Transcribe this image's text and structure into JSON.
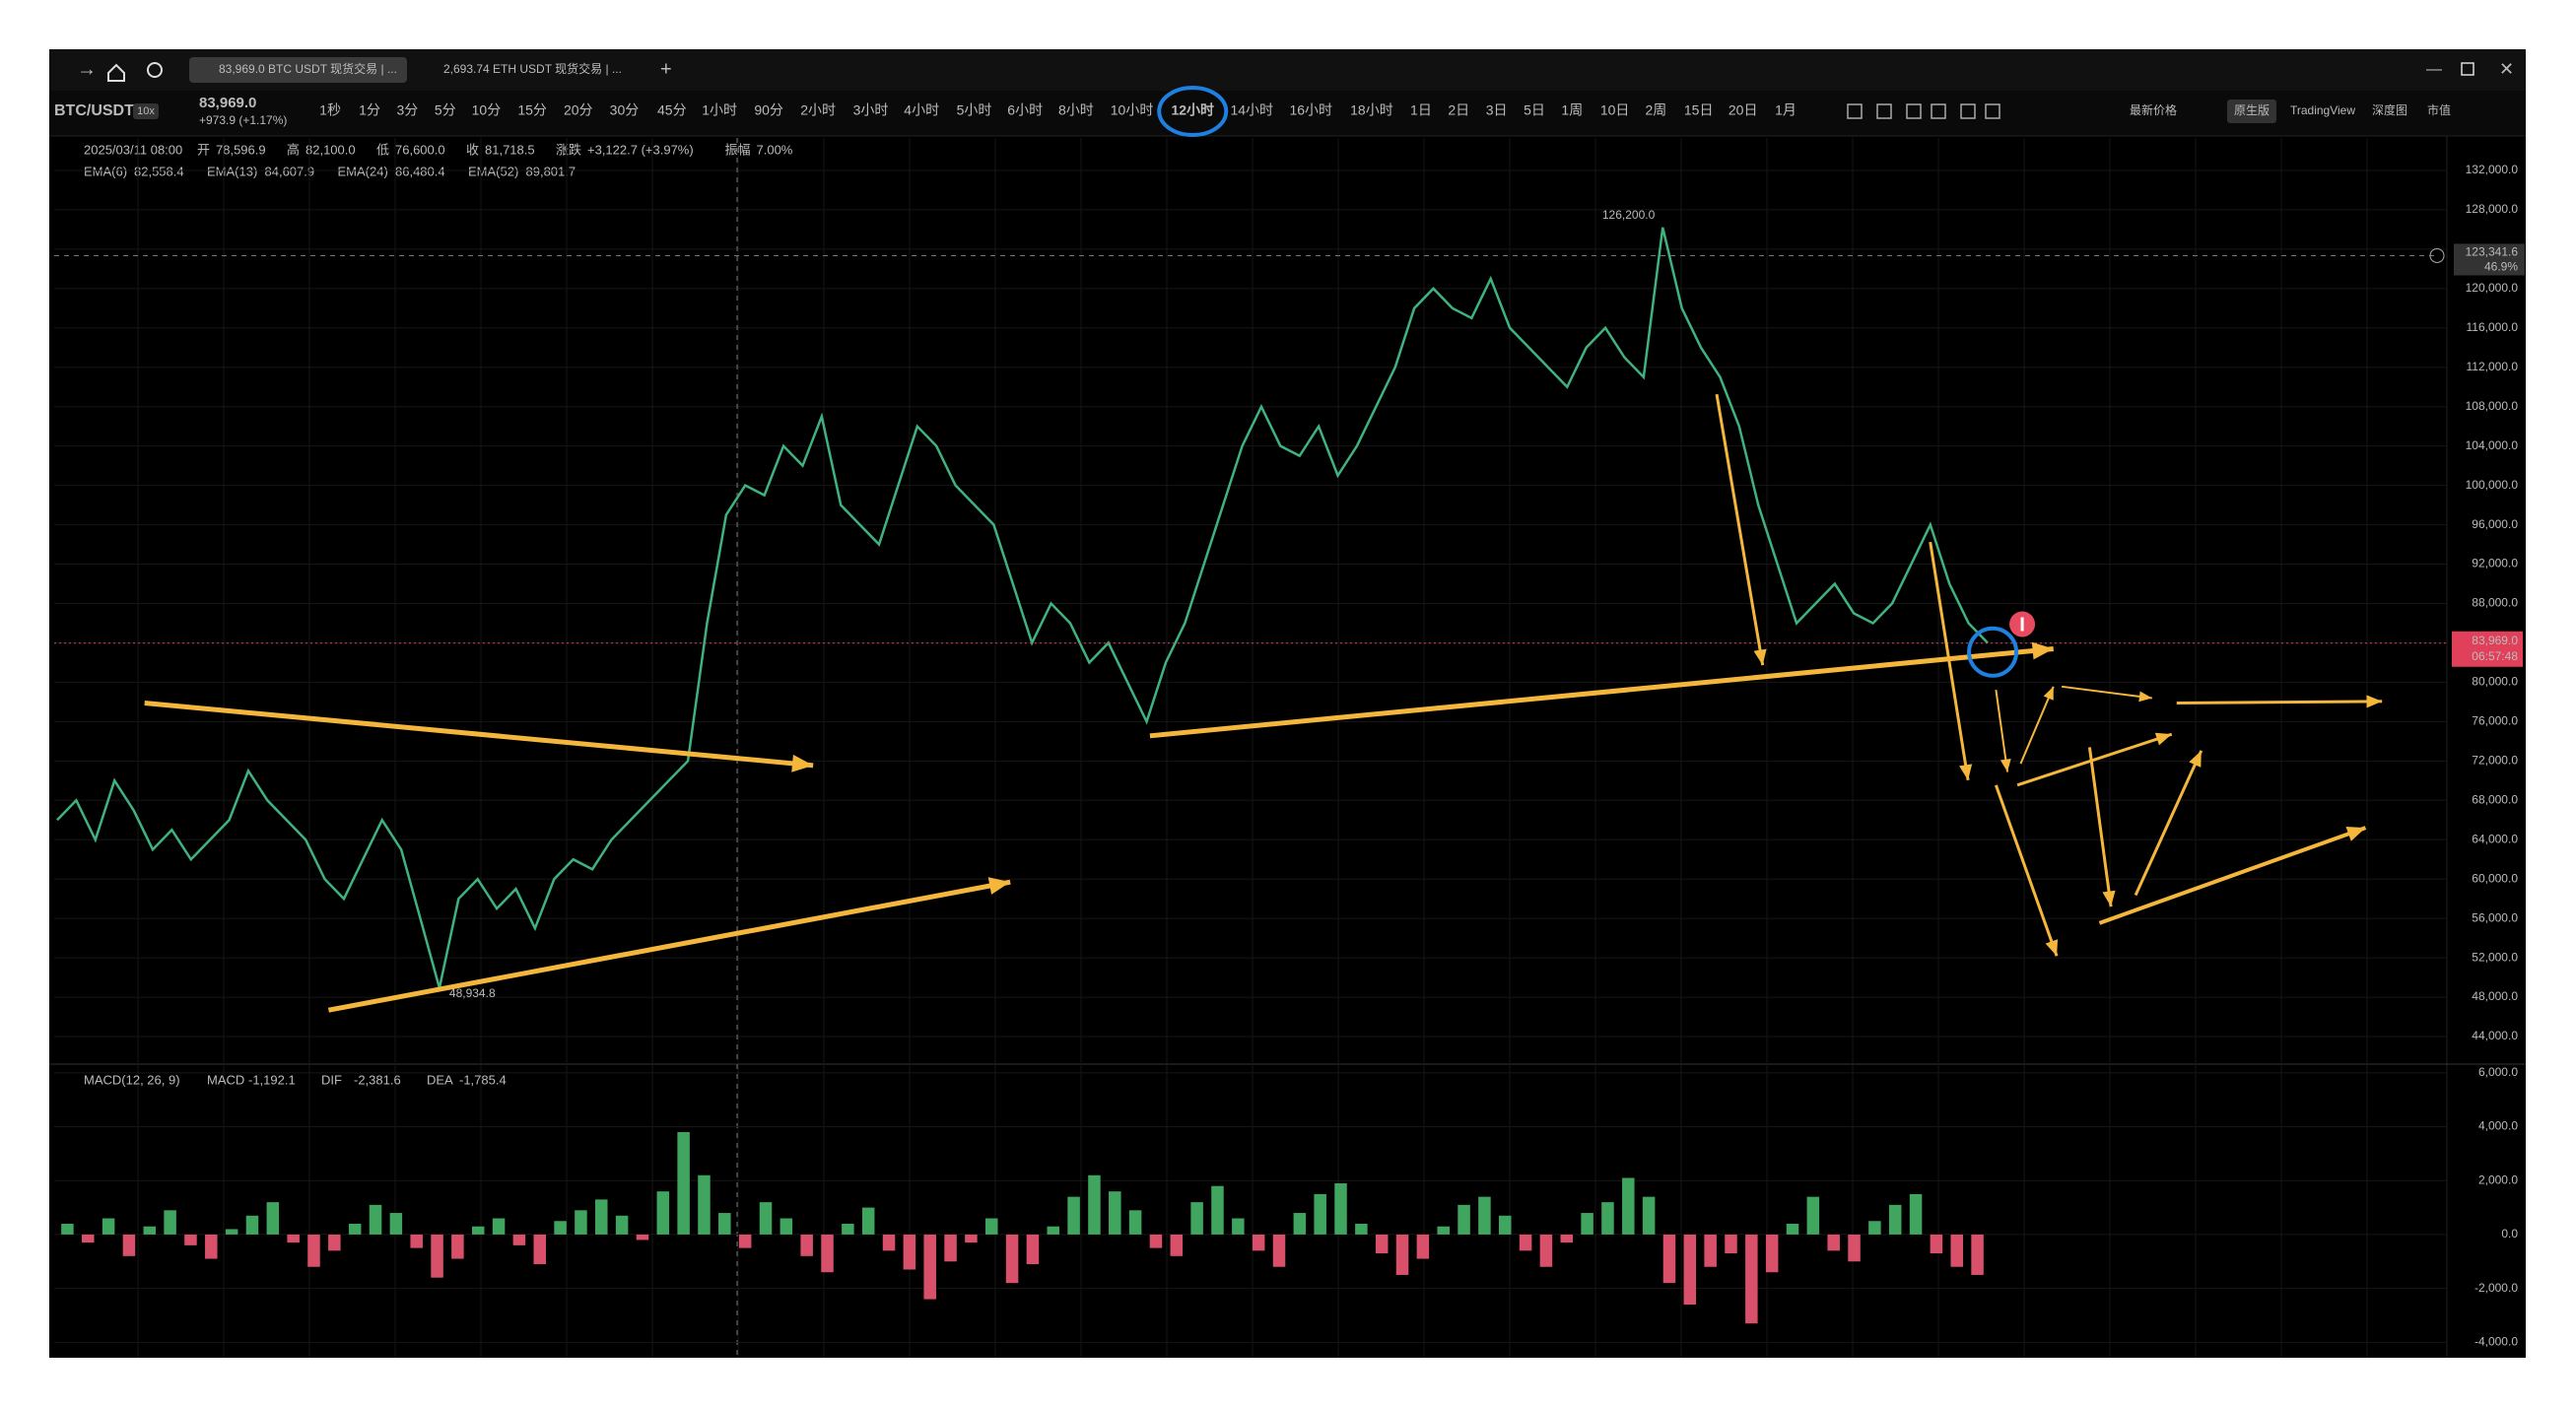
{
  "window": {
    "tabs": [
      "83,969.0 BTC USDT 现货交易 | ...",
      "2,693.74 ETH USDT 现货交易 | ..."
    ]
  },
  "toolbar": {
    "symbol": "BTC/USDT",
    "leverage": "10x",
    "price": "83,969.0",
    "change": "+973.9 (+1.17%)",
    "intervals": [
      "1秒",
      "1分",
      "3分",
      "5分",
      "10分",
      "15分",
      "20分",
      "30分",
      "45分",
      "1小时",
      "90分",
      "2小时",
      "3小时",
      "4小时",
      "5小时",
      "6小时",
      "8小时",
      "10小时",
      "12小时",
      "14小时",
      "16小时",
      "18小时",
      "1日",
      "2日",
      "3日",
      "5日",
      "1周",
      "10日",
      "2周",
      "15日",
      "20日",
      "1月"
    ],
    "selected_interval": 18,
    "view_options": [
      "最新价格",
      "原生版",
      "TradingView",
      "深度图",
      "市值"
    ]
  },
  "legend": {
    "date": "2025/03/11 08:00",
    "items": [
      {
        "label": "开",
        "value": "78,596.9"
      },
      {
        "label": "高",
        "value": "82,100.0"
      },
      {
        "label": "低",
        "value": "76,600.0"
      },
      {
        "label": "收",
        "value": "81,718.5"
      },
      {
        "label": "涨跌",
        "value": "+3,122.7 (+3.97%)"
      },
      {
        "label": "振幅",
        "value": "7.00%"
      }
    ],
    "ema": [
      {
        "name": "EMA(6)",
        "value": "82,558.4",
        "color": "#e8a23a"
      },
      {
        "name": "EMA(13)",
        "value": "84,607.9",
        "color": "#d9557a"
      },
      {
        "name": "EMA(24)",
        "value": "86,480.4",
        "color": "#5ab0d8"
      },
      {
        "name": "EMA(52)",
        "value": "89,801.7",
        "color": "#c0503c"
      }
    ]
  },
  "chart": {
    "type": "line",
    "color": "#3fb27f",
    "ylim": [
      41400,
      134800
    ],
    "yticks": [
      {
        "value": 132000,
        "label": "132,000.0"
      },
      {
        "value": 128000,
        "label": "128,000.0"
      },
      {
        "value": 124000,
        "label": "124,000.0"
      },
      {
        "value": 120000,
        "label": "120,000.0"
      },
      {
        "value": 116000,
        "label": "116,000.0"
      },
      {
        "value": 112000,
        "label": "112,000.0"
      },
      {
        "value": 108000,
        "label": "108,000.0"
      },
      {
        "value": 104000,
        "label": "104,000.0"
      },
      {
        "value": 100000,
        "label": "100,000.0"
      },
      {
        "value": 96000,
        "label": "96,000.0"
      },
      {
        "value": 92000,
        "label": "92,000.0"
      },
      {
        "value": 88000,
        "label": "88,000.0"
      },
      {
        "value": 84000,
        "label": "84,000.0"
      },
      {
        "value": 80000,
        "label": "80,000.0"
      },
      {
        "value": 76000,
        "label": "76,000.0"
      },
      {
        "value": 72000,
        "label": "72,000.0"
      },
      {
        "value": 68000,
        "label": "68,000.0"
      },
      {
        "value": 64000,
        "label": "64,000.0"
      },
      {
        "value": 60000,
        "label": "60,000.0"
      },
      {
        "value": 56000,
        "label": "56,000.0"
      },
      {
        "value": 52000,
        "label": "52,000.0"
      },
      {
        "value": 48000,
        "label": "48,000.0"
      },
      {
        "value": 44000,
        "label": "44,000.0"
      }
    ],
    "closes": [
      66000,
      68000,
      64000,
      70000,
      67000,
      63000,
      65000,
      62000,
      64000,
      66000,
      71000,
      68000,
      66000,
      64000,
      60000,
      58000,
      62000,
      66000,
      63000,
      56000,
      48934.8,
      58000,
      60000,
      57000,
      59000,
      55000,
      60000,
      62000,
      61000,
      64000,
      66000,
      68000,
      70000,
      72000,
      86000,
      97000,
      100000,
      99000,
      104000,
      102000,
      107000,
      98000,
      96000,
      94000,
      100000,
      106000,
      104000,
      100000,
      98000,
      96000,
      90000,
      84000,
      88000,
      86000,
      82000,
      84000,
      80000,
      76000,
      82000,
      86000,
      92000,
      98000,
      104000,
      108000,
      104000,
      103000,
      106000,
      101000,
      104000,
      108000,
      112000,
      118000,
      120000,
      118000,
      117000,
      121000,
      116000,
      114000,
      112000,
      110000,
      114000,
      116000,
      113000,
      111000,
      126200,
      118000,
      114000,
      111000,
      106000,
      98000,
      92000,
      86000,
      88000,
      90000,
      87000,
      86000,
      88000,
      92000,
      96000,
      90000,
      86000,
      84000
    ],
    "high": {
      "value": 126200,
      "label": "126,200.0"
    },
    "low": {
      "value": 48934.8,
      "label": "48,934.8"
    },
    "crosshair": {
      "value": 123341.6,
      "label": "123,341.6",
      "percent": "46.9%"
    },
    "last": {
      "value": 83969,
      "label": "83,969.0",
      "countdown": "06:57:48"
    }
  },
  "macd": {
    "title": "MACD(12, 26, 9)",
    "items": [
      {
        "label": "MACD",
        "value": "-1,192.1",
        "color": "#5ab0d8"
      },
      {
        "label": "DIF",
        "value": "-2,381.6",
        "color": "#e8a23a"
      },
      {
        "label": "DEA",
        "value": "-1,785.4",
        "color": "#d9557a"
      }
    ],
    "ylim": [
      -4500,
      6250
    ],
    "yticks": [
      {
        "value": 6000,
        "label": "6,000.0"
      },
      {
        "value": 4000,
        "label": "4,000.0"
      },
      {
        "value": 2000,
        "label": "2,000.0"
      },
      {
        "value": 0,
        "label": "0.0"
      },
      {
        "value": -2000,
        "label": "-2,000.0"
      },
      {
        "value": -4000,
        "label": "-4,000.0"
      }
    ],
    "histogram": [
      400,
      -300,
      600,
      -800,
      300,
      900,
      -400,
      -900,
      200,
      700,
      1200,
      -300,
      -1200,
      -600,
      400,
      1100,
      800,
      -500,
      -1600,
      -900,
      300,
      600,
      -400,
      -1100,
      500,
      900,
      1300,
      700,
      -200,
      1600,
      3800,
      2200,
      800,
      -500,
      1200,
      600,
      -800,
      -1400,
      400,
      1000,
      -600,
      -1300,
      -2400,
      -1000,
      -300,
      600,
      -1800,
      -1100,
      300,
      1400,
      2200,
      1600,
      900,
      -500,
      -800,
      1200,
      1800,
      600,
      -600,
      -1200,
      800,
      1500,
      1900,
      400,
      -700,
      -1500,
      -900,
      300,
      1100,
      1400,
      700,
      -600,
      -1200,
      -300,
      800,
      1200,
      2100,
      1400,
      -1800,
      -2600,
      -1200,
      -700,
      -3300,
      -1400,
      400,
      1400,
      -600,
      -1000,
      500,
      1100,
      1500,
      -700,
      -1200,
      -1500
    ]
  }
}
